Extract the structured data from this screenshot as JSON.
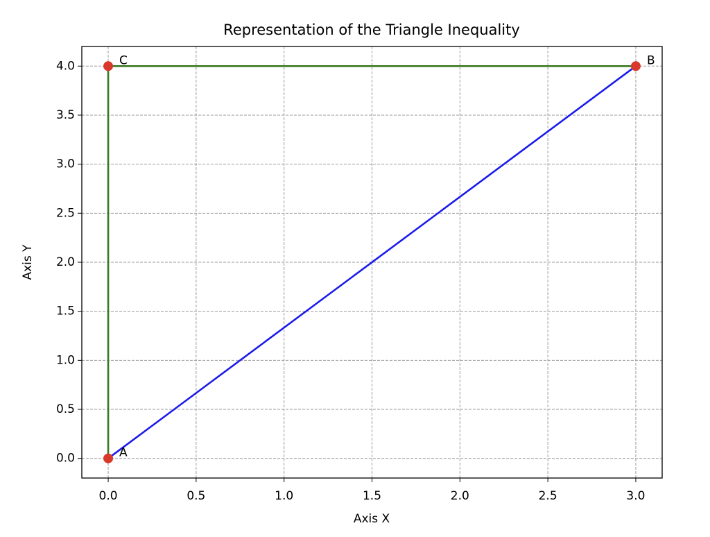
{
  "chart_data": {
    "type": "line",
    "title": "Representation of the Triangle Inequality",
    "xlabel": "Axis X",
    "ylabel": "Axis Y",
    "xlim": [
      -0.15,
      3.15
    ],
    "ylim": [
      -0.2,
      4.2
    ],
    "xticks": [
      {
        "value": 0,
        "label": "0.0"
      },
      {
        "value": 0.5,
        "label": "0.5"
      },
      {
        "value": 1,
        "label": "1.0"
      },
      {
        "value": 1.5,
        "label": "1.5"
      },
      {
        "value": 2,
        "label": "2.0"
      },
      {
        "value": 2.5,
        "label": "2.5"
      },
      {
        "value": 3,
        "label": "3.0"
      }
    ],
    "yticks": [
      {
        "value": 0,
        "label": "0.0"
      },
      {
        "value": 0.5,
        "label": "0.5"
      },
      {
        "value": 1,
        "label": "1.0"
      },
      {
        "value": 1.5,
        "label": "1.5"
      },
      {
        "value": 2,
        "label": "2.0"
      },
      {
        "value": 2.5,
        "label": "2.5"
      },
      {
        "value": 3,
        "label": "3.0"
      },
      {
        "value": 3.5,
        "label": "3.5"
      },
      {
        "value": 4,
        "label": "4.0"
      }
    ],
    "grid": true,
    "series": [
      {
        "color": "#3a7a22",
        "x": [
          0,
          0,
          3
        ],
        "values": [
          0,
          4,
          4
        ]
      },
      {
        "color": "#1a1aeb",
        "x": [
          0,
          3
        ],
        "values": [
          0,
          4
        ]
      }
    ],
    "points": {
      "color": "#d9392b",
      "labels": [
        "A",
        "B",
        "C"
      ],
      "x": [
        0,
        3,
        0
      ],
      "y": [
        0,
        4,
        4
      ]
    }
  }
}
